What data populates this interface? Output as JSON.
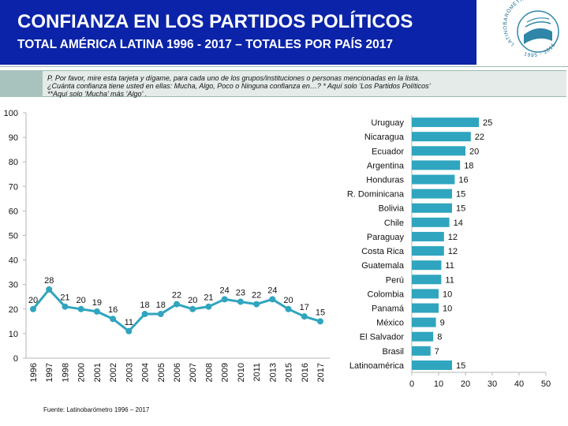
{
  "header": {
    "title": "CONFIANZA EN LOS PARTIDOS POLÍTICOS",
    "subtitle": "TOTAL AMÉRICA LATINA 1996 - 2017 – TOTALES POR PAÍS 2017",
    "logo": {
      "text": "LATINOBARÓMETRO",
      "years": "1995 - 2015"
    }
  },
  "question": {
    "line1": "P. Por favor, mire esta tarjeta y dígame, para cada uno de los grupos/instituciones o personas mencionadas en la lista.",
    "line2": "¿Cuánta confianza tiene usted en ellas: Mucha, Algo, Poco o Ninguna confianza en…? * Aquí solo ‘Los Partidos Políticos’",
    "line3": "**Aquí solo ‘Mucha’ más ‘Algo’ ."
  },
  "source": "Fuente: Latinobarómetro 1996 – 2017",
  "colors": {
    "header_bg": "#0b23a8",
    "line": "#30a5bf",
    "bar": "#30a5bf",
    "question_bg": "#e4ebe9",
    "question_strip": "#a8c3bd"
  },
  "chart_data": [
    {
      "type": "line",
      "x": [
        "1996",
        "1997",
        "1998",
        "2000",
        "2001",
        "2002",
        "2003",
        "2004",
        "2005",
        "2006",
        "2007",
        "2008",
        "2009",
        "2010",
        "2011",
        "2013",
        "2015",
        "2016",
        "2017"
      ],
      "values": [
        20,
        28,
        21,
        20,
        19,
        16,
        11,
        18,
        18,
        22,
        20,
        21,
        24,
        23,
        22,
        24,
        20,
        17,
        15
      ],
      "ylim": [
        0,
        100
      ],
      "yticks": [
        0,
        10,
        20,
        30,
        40,
        50,
        60,
        70,
        80,
        90,
        100
      ],
      "grid": false,
      "data_labels": true
    },
    {
      "type": "bar",
      "orientation": "horizontal",
      "categories": [
        "Uruguay",
        "Nicaragua",
        "Ecuador",
        "Argentina",
        "Honduras",
        "R. Dominicana",
        "Bolivia",
        "Chile",
        "Paraguay",
        "Costa Rica",
        "Guatemala",
        "Perú",
        "Colombia",
        "Panamá",
        "México",
        "El Salvador",
        "Brasil",
        "Latinoamérica"
      ],
      "values": [
        25,
        22,
        20,
        18,
        16,
        15,
        15,
        14,
        12,
        12,
        11,
        11,
        10,
        10,
        9,
        8,
        7,
        15
      ],
      "xlim": [
        0,
        50
      ],
      "xticks": [
        0,
        10,
        20,
        30,
        40,
        50
      ],
      "grid": false,
      "data_labels": true
    }
  ]
}
